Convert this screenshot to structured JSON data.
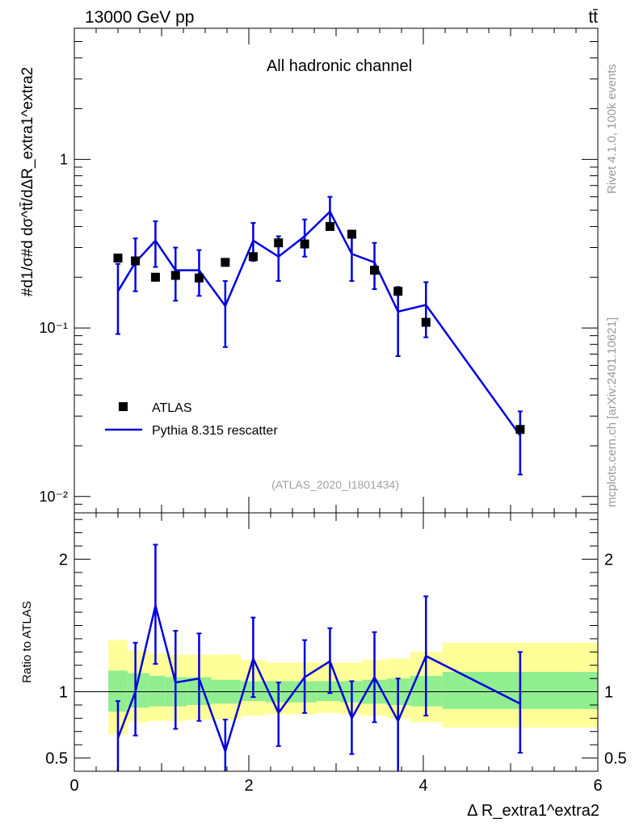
{
  "header": {
    "energy_label": "13000 GeV pp",
    "process_label": "tt̄"
  },
  "side_labels": {
    "rivet": "Rivet 4.1.0,  100k events",
    "mcplots": "mcplots.cern.ch [arXiv:2401.10621]"
  },
  "colors": {
    "mc_line": "#0000dd",
    "data_marker": "#000000",
    "band_inner": "#90ee90",
    "band_outer": "#ffff99",
    "watermark": "#a0a0a0"
  },
  "chart_data": [
    {
      "id": "main",
      "type": "scatter",
      "title": "All hadronic channel",
      "watermark": "(ATLAS_2020_I1801434)",
      "ylabel": "#d1/σ#d dσ^tt̄/dΔR_extra1^extra2",
      "yscale": "log",
      "ylim": [
        0.008,
        6.0
      ],
      "xlim": [
        0,
        6
      ],
      "ytick_labels": [
        "1",
        "10⁻¹",
        "10⁻²"
      ],
      "ytick_values": [
        1,
        0.1,
        0.01
      ],
      "legend": {
        "position": "bottom-left",
        "entries": [
          {
            "label": "ATLAS",
            "kind": "marker"
          },
          {
            "label": "Pythia 8.315 rescatter",
            "kind": "line"
          }
        ]
      },
      "series": [
        {
          "name": "ATLAS",
          "bins": [
            [
              0.39,
              0.61
            ],
            [
              0.61,
              0.86
            ],
            [
              0.86,
              1.04
            ],
            [
              1.04,
              1.29
            ],
            [
              1.29,
              1.57
            ],
            [
              1.57,
              1.91
            ],
            [
              1.91,
              2.19
            ],
            [
              2.19,
              2.5
            ],
            [
              2.5,
              2.78
            ],
            [
              2.78,
              3.05
            ],
            [
              3.05,
              3.3
            ],
            [
              3.3,
              3.58
            ],
            [
              3.58,
              3.85
            ],
            [
              3.85,
              4.22
            ],
            [
              4.22,
              6.0
            ]
          ],
          "x": [
            0.5,
            0.7,
            0.93,
            1.16,
            1.43,
            1.73,
            2.05,
            2.34,
            2.64,
            2.93,
            3.18,
            3.44,
            3.71,
            4.03,
            5.11
          ],
          "values": [
            0.26,
            0.25,
            0.2,
            0.205,
            0.198,
            0.245,
            0.265,
            0.32,
            0.315,
            0.4,
            0.36,
            0.22,
            0.165,
            0.108,
            0.025
          ]
        },
        {
          "name": "Pythia 8.315 rescatter",
          "x": [
            0.5,
            0.7,
            0.93,
            1.16,
            1.43,
            1.73,
            2.05,
            2.34,
            2.64,
            2.93,
            3.18,
            3.44,
            3.71,
            4.03,
            5.11
          ],
          "values": [
            0.165,
            0.245,
            0.33,
            0.22,
            0.22,
            0.135,
            0.33,
            0.265,
            0.35,
            0.49,
            0.275,
            0.245,
            0.125,
            0.137,
            0.023
          ],
          "err_low": [
            0.092,
            0.165,
            0.23,
            0.145,
            0.155,
            0.077,
            0.25,
            0.19,
            0.265,
            0.4,
            0.19,
            0.17,
            0.068,
            0.088,
            0.0135
          ],
          "err_high": [
            0.24,
            0.34,
            0.43,
            0.3,
            0.29,
            0.19,
            0.42,
            0.35,
            0.44,
            0.6,
            0.36,
            0.32,
            0.175,
            0.187,
            0.032
          ]
        }
      ]
    },
    {
      "id": "ratio",
      "type": "line",
      "ylabel": "Ratio to ATLAS",
      "xlabel": "Δ R_extra1^extra2",
      "ylim": [
        0.4,
        2.35
      ],
      "xlim": [
        0,
        6
      ],
      "ytick_labels": [
        "2",
        "1",
        "0.5"
      ],
      "ytick_values": [
        2,
        1,
        0.5
      ],
      "xtick_labels": [
        "0",
        "2",
        "4",
        "6"
      ],
      "xtick_values": [
        0,
        2,
        4,
        6
      ],
      "reference_line": 1,
      "bands": {
        "bins": [
          [
            0.39,
            0.61
          ],
          [
            0.61,
            0.86
          ],
          [
            0.86,
            1.04
          ],
          [
            1.04,
            1.29
          ],
          [
            1.29,
            1.57
          ],
          [
            1.57,
            1.91
          ],
          [
            1.91,
            2.19
          ],
          [
            2.19,
            2.5
          ],
          [
            2.5,
            2.78
          ],
          [
            2.78,
            3.05
          ],
          [
            3.05,
            3.3
          ],
          [
            3.3,
            3.58
          ],
          [
            3.58,
            3.85
          ],
          [
            3.85,
            4.22
          ],
          [
            4.22,
            6.0
          ]
        ],
        "inner_low": [
          0.85,
          0.88,
          0.89,
          0.89,
          0.9,
          0.91,
          0.93,
          0.92,
          0.92,
          0.93,
          0.92,
          0.91,
          0.9,
          0.89,
          0.87
        ],
        "inner_high": [
          1.16,
          1.14,
          1.12,
          1.11,
          1.11,
          1.09,
          1.08,
          1.08,
          1.08,
          1.08,
          1.08,
          1.09,
          1.1,
          1.12,
          1.15
        ],
        "outer_low": [
          0.68,
          0.77,
          0.78,
          0.78,
          0.79,
          0.79,
          0.82,
          0.83,
          0.83,
          0.84,
          0.83,
          0.82,
          0.8,
          0.77,
          0.73
        ],
        "outer_high": [
          1.39,
          1.31,
          1.29,
          1.28,
          1.28,
          1.28,
          1.24,
          1.22,
          1.22,
          1.22,
          1.22,
          1.24,
          1.25,
          1.3,
          1.37
        ]
      },
      "series": [
        {
          "name": "Pythia 8.315 rescatter",
          "x": [
            0.5,
            0.7,
            0.93,
            1.16,
            1.43,
            1.73,
            2.05,
            2.34,
            2.64,
            2.93,
            3.18,
            3.44,
            3.71,
            4.03,
            5.11
          ],
          "values": [
            0.65,
            1.0,
            1.65,
            1.07,
            1.1,
            0.55,
            1.25,
            0.84,
            1.11,
            1.23,
            0.8,
            1.11,
            0.78,
            1.27,
            0.91
          ],
          "err_low": [
            0.35,
            0.67,
            1.21,
            0.72,
            0.78,
            0.32,
            0.96,
            0.59,
            0.84,
            0.99,
            0.53,
            0.77,
            0.36,
            0.82,
            0.54
          ],
          "err_high": [
            0.93,
            1.37,
            2.11,
            1.46,
            1.44,
            0.79,
            1.56,
            1.07,
            1.39,
            1.48,
            1.08,
            1.45,
            1.1,
            1.72,
            1.3
          ]
        }
      ]
    }
  ]
}
